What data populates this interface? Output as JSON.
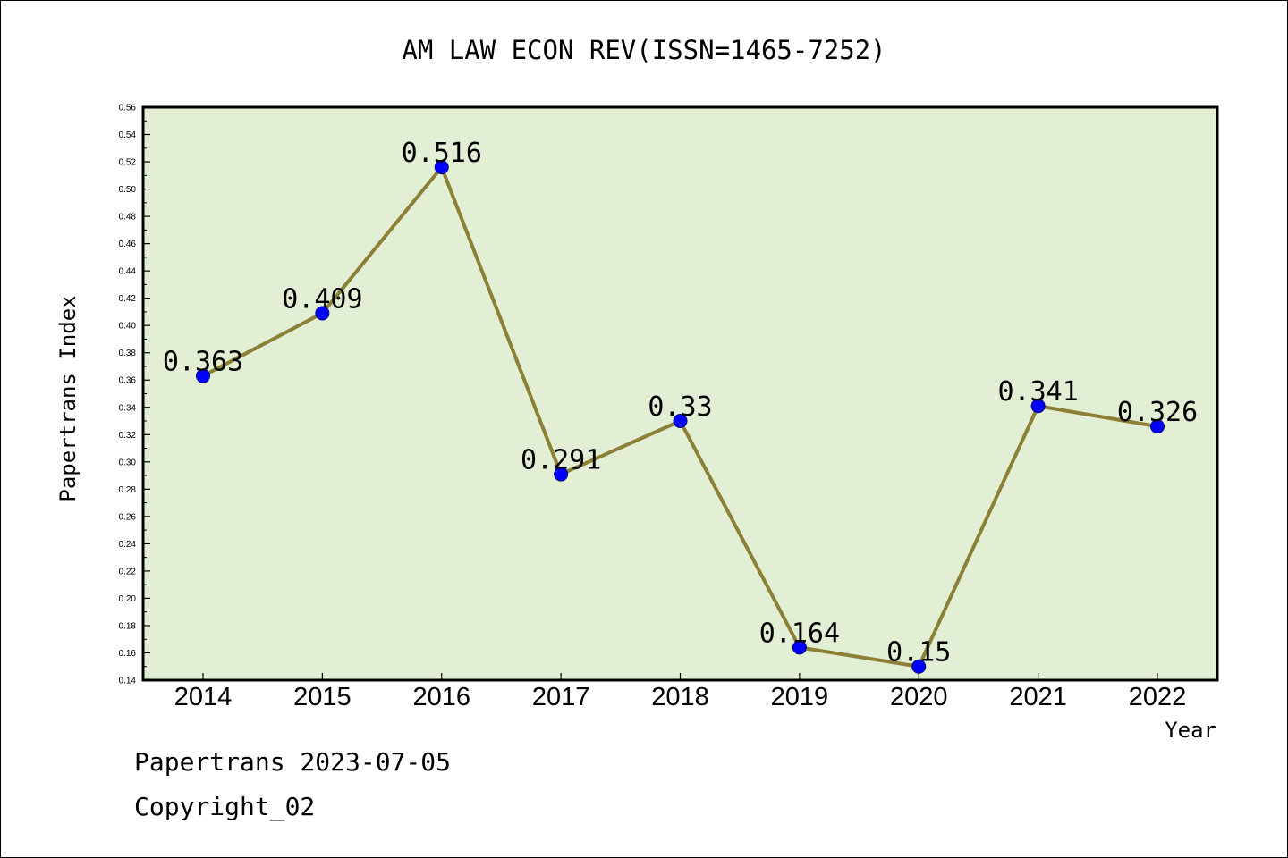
{
  "chart_data": {
    "type": "line",
    "title": "AM LAW ECON REV(ISSN=1465-7252)",
    "xlabel": "Year",
    "ylabel": "Papertrans Index",
    "categories": [
      "2014",
      "2015",
      "2016",
      "2017",
      "2018",
      "2019",
      "2020",
      "2021",
      "2022"
    ],
    "series": [
      {
        "values": [
          0.363,
          0.409,
          0.516,
          0.291,
          0.33,
          0.164,
          0.15,
          0.341,
          0.326
        ]
      }
    ],
    "data_labels": [
      "0.363",
      "0.409",
      "0.516",
      "0.291",
      "0.33",
      "0.164",
      "0.15",
      "0.341",
      "0.326"
    ],
    "ylim": [
      0.14,
      0.56
    ],
    "yticks": [
      "0.14",
      "0.16",
      "0.18",
      "0.20",
      "0.22",
      "0.24",
      "0.26",
      "0.28",
      "0.30",
      "0.32",
      "0.34",
      "0.36",
      "0.38",
      "0.40",
      "0.42",
      "0.44",
      "0.46",
      "0.48",
      "0.50",
      "0.52",
      "0.54",
      "0.56"
    ],
    "grid": false,
    "colors": {
      "plot_background": "#e2efd5",
      "line": "#8b8035",
      "marker": "#0000ff"
    }
  },
  "footer": {
    "source": "Papertrans 2023-07-05",
    "copyright": "Copyright_02"
  }
}
